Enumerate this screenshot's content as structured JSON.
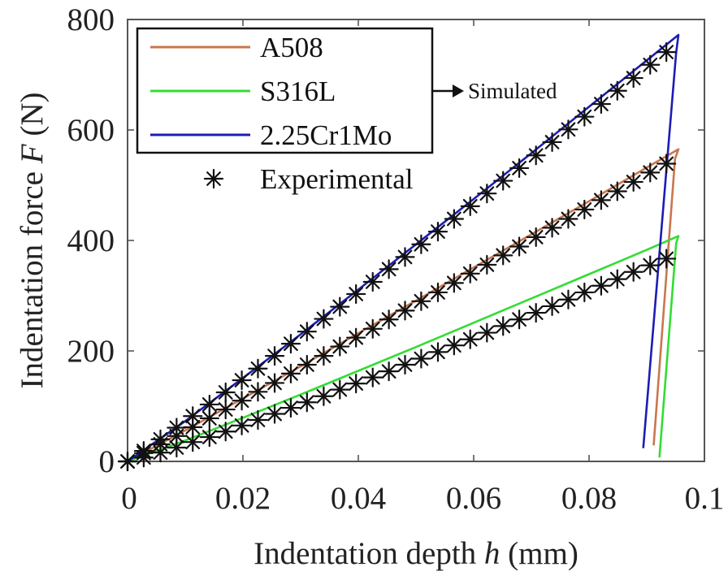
{
  "chart_data": {
    "type": "line",
    "title": "",
    "xlabel": "Indentation depth h (mm)",
    "xlabel_parts": {
      "pre": "Indentation depth ",
      "var": "h",
      "post": " (mm)"
    },
    "ylabel": "Indentation force F (N)",
    "ylabel_parts": {
      "pre": "Indentation force ",
      "var": "F",
      "post": " (N)"
    },
    "xlim": [
      0,
      0.1
    ],
    "ylim": [
      0,
      800
    ],
    "x_ticks": [
      0,
      0.02,
      0.04,
      0.06,
      0.08,
      0.1
    ],
    "x_tick_labels": [
      "0",
      "0.02",
      "0.04",
      "0.06",
      "0.08",
      "0.1"
    ],
    "y_ticks": [
      0,
      200,
      400,
      600,
      800
    ],
    "y_tick_labels": [
      "0",
      "200",
      "400",
      "600",
      "800"
    ],
    "grid": false,
    "legend": {
      "placement": "top-left",
      "entries": [
        {
          "label": "A508",
          "type": "line",
          "color": "#C8774E"
        },
        {
          "label": "S316L",
          "type": "line",
          "color": "#33DD33"
        },
        {
          "label": "2.25Cr1Mo",
          "type": "line",
          "color": "#1C1CB4"
        },
        {
          "label": "Experimental",
          "type": "marker",
          "marker": "*",
          "color": "#111111"
        }
      ]
    },
    "annotation": {
      "text": "Simulated",
      "arrow_from": "legend-box",
      "direction": "right"
    },
    "simulated_series": [
      {
        "name": "A508",
        "color": "#C8774E",
        "x": [
          0,
          0.01,
          0.02,
          0.03,
          0.04,
          0.05,
          0.06,
          0.07,
          0.08,
          0.09,
          0.0955,
          0.0949,
          0.0912
        ],
        "y": [
          0,
          56,
          114,
          172,
          232,
          291,
          351,
          411,
          471,
          532,
          565,
          548,
          29
        ]
      },
      {
        "name": "S316L",
        "color": "#33DD33",
        "x": [
          0,
          0.01,
          0.02,
          0.03,
          0.04,
          0.05,
          0.06,
          0.07,
          0.08,
          0.09,
          0.0955,
          0.0951,
          0.0922
        ],
        "y": [
          0,
          38,
          79,
          121,
          164,
          207,
          251,
          295,
          339,
          383,
          408,
          395,
          7
        ]
      },
      {
        "name": "2.25Cr1Mo",
        "color": "#1C1CB4",
        "x": [
          0,
          0.01,
          0.02,
          0.03,
          0.04,
          0.05,
          0.06,
          0.07,
          0.08,
          0.09,
          0.0955,
          0.0951,
          0.0894
        ],
        "y": [
          0,
          73,
          151,
          230,
          311,
          393,
          475,
          558,
          642,
          726,
          772,
          740,
          24
        ]
      }
    ],
    "experimental_series": [
      {
        "name": "2.25Cr1Mo (Experimental)",
        "marker": "*",
        "color": "#111111",
        "x": [
          0,
          0.0028,
          0.0057,
          0.0085,
          0.0113,
          0.0142,
          0.017,
          0.0198,
          0.0226,
          0.0255,
          0.0283,
          0.0311,
          0.034,
          0.0368,
          0.0396,
          0.0425,
          0.0453,
          0.0481,
          0.0509,
          0.0538,
          0.0566,
          0.0594,
          0.0623,
          0.0651,
          0.0679,
          0.0708,
          0.0736,
          0.0764,
          0.0792,
          0.0821,
          0.0849,
          0.0877,
          0.0906,
          0.0934
        ],
        "y": [
          0,
          19,
          40,
          61,
          82,
          103,
          125,
          147,
          168,
          191,
          213,
          235,
          258,
          280,
          303,
          325,
          348,
          370,
          393,
          416,
          439,
          462,
          485,
          508,
          531,
          554,
          578,
          601,
          624,
          647,
          671,
          694,
          718,
          741
        ]
      },
      {
        "name": "A508 (Experimental)",
        "marker": "*",
        "color": "#111111",
        "x": [
          0,
          0.0028,
          0.0057,
          0.0085,
          0.0113,
          0.0142,
          0.017,
          0.0198,
          0.0226,
          0.0255,
          0.0283,
          0.0311,
          0.034,
          0.0368,
          0.0396,
          0.0425,
          0.0453,
          0.0481,
          0.0509,
          0.0538,
          0.0566,
          0.0594,
          0.0623,
          0.0651,
          0.0679,
          0.0708,
          0.0736,
          0.0764,
          0.0792,
          0.0821,
          0.0849,
          0.0877,
          0.0906,
          0.0934
        ],
        "y": [
          0,
          15,
          31,
          46,
          62,
          78,
          94,
          110,
          126,
          142,
          159,
          175,
          191,
          208,
          224,
          240,
          257,
          273,
          290,
          306,
          323,
          340,
          356,
          373,
          389,
          406,
          423,
          439,
          456,
          473,
          489,
          506,
          523,
          539
        ]
      },
      {
        "name": "S316L (Experimental)",
        "marker": "*",
        "color": "#111111",
        "x": [
          0,
          0.0028,
          0.0057,
          0.0085,
          0.0113,
          0.0142,
          0.017,
          0.0198,
          0.0226,
          0.0255,
          0.0283,
          0.0311,
          0.034,
          0.0368,
          0.0396,
          0.0425,
          0.0453,
          0.0481,
          0.0509,
          0.0538,
          0.0566,
          0.0594,
          0.0623,
          0.0651,
          0.0679,
          0.0708,
          0.0736,
          0.0764,
          0.0792,
          0.0821,
          0.0849,
          0.0877,
          0.0906,
          0.0934
        ],
        "y": [
          0,
          7,
          16,
          25,
          35,
          44,
          54,
          65,
          75,
          86,
          97,
          107,
          118,
          130,
          141,
          152,
          163,
          175,
          186,
          198,
          210,
          221,
          233,
          245,
          257,
          269,
          281,
          293,
          306,
          318,
          330,
          343,
          355,
          367
        ]
      }
    ]
  }
}
